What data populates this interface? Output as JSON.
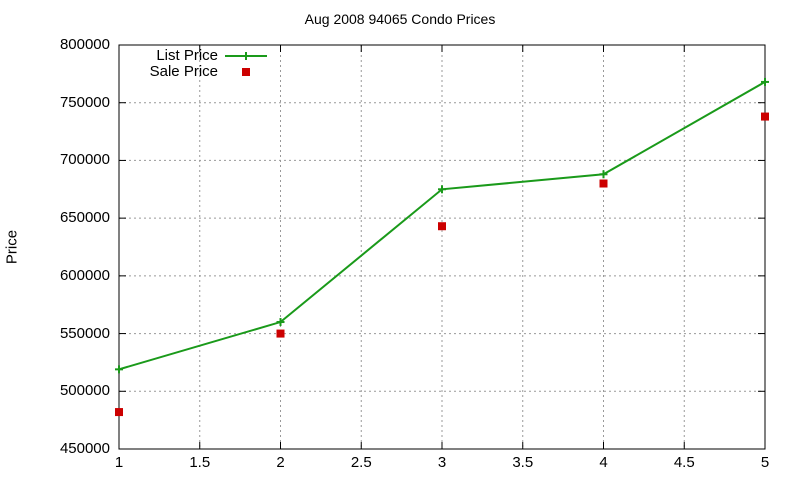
{
  "chart_data": {
    "type": "line",
    "title": "Aug 2008 94065 Condo Prices",
    "xlabel": "",
    "ylabel": "Price",
    "xlim": [
      1,
      5
    ],
    "ylim": [
      450000,
      800000
    ],
    "x_ticks": [
      "1",
      "1.5",
      "2",
      "2.5",
      "3",
      "3.5",
      "4",
      "4.5",
      "5"
    ],
    "y_ticks": [
      "450000",
      "500000",
      "550000",
      "600000",
      "650000",
      "700000",
      "750000",
      "800000"
    ],
    "grid": true,
    "legend_position": "top-left",
    "series": [
      {
        "name": "List Price",
        "style": "line-with-plus-markers",
        "color": "#1a9a1a",
        "x": [
          1,
          2,
          3,
          4,
          5
        ],
        "y": [
          519000,
          560000,
          675000,
          688000,
          768000
        ]
      },
      {
        "name": "Sale Price",
        "style": "square-markers",
        "color": "#cc0000",
        "x": [
          1,
          2,
          3,
          4,
          5
        ],
        "y": [
          482000,
          550000,
          643000,
          680000,
          738000
        ]
      }
    ]
  }
}
